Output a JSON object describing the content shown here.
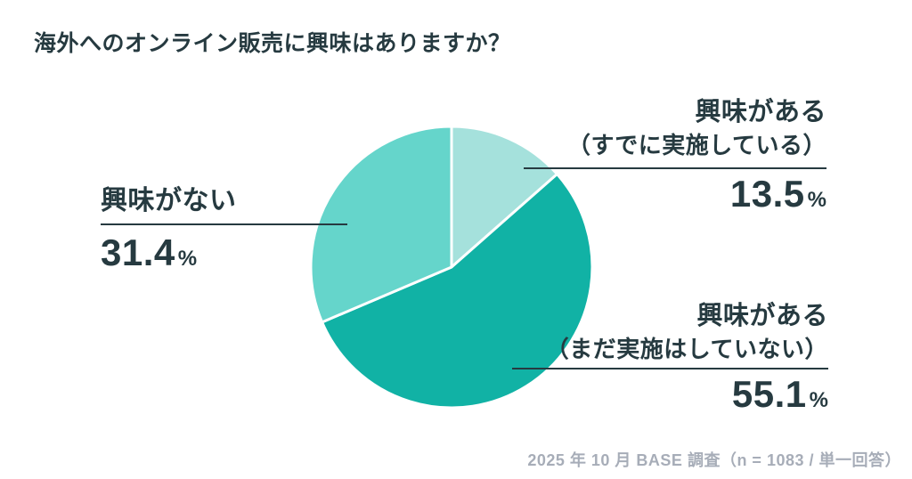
{
  "title": "海外へのオンライン販売に興味はありますか？",
  "footer": "2025 年 10 月 BASE 調査（n = 1083 / 単一回答）",
  "colors": {
    "text": "#263a40",
    "footer_text": "#a7adb8",
    "slice_interested_doing": "#a5e1dc",
    "slice_interested_not_yet": "#11b2a5",
    "slice_not_interested": "#65d5cb",
    "slice_border": "#ffffff"
  },
  "chart_data": {
    "type": "pie",
    "title": "海外へのオンライン販売に興味はありますか？",
    "start_angle_deg": 0,
    "direction": "clockwise",
    "slices": [
      {
        "label": "興味がある（すでに実施している）",
        "value": 13.5,
        "color": "#a5e1dc"
      },
      {
        "label": "興味がある（まだ実施はしていない）",
        "value": 55.1,
        "color": "#11b2a5"
      },
      {
        "label": "興味がない",
        "value": 31.4,
        "color": "#65d5cb"
      }
    ],
    "legend_position": "none",
    "source_note": "2025 年 10 月 BASE 調査（n = 1083 / 単一回答）"
  },
  "callouts": {
    "interested_doing": {
      "line1": "興味がある",
      "line2": "（すでに実施している）",
      "value": "13.5",
      "unit": "%"
    },
    "not_interested": {
      "line1": "興味がない",
      "value": "31.4",
      "unit": "%"
    },
    "interested_not_yet": {
      "line1": "興味がある",
      "line2": "（まだ実施はしていない）",
      "value": "55.1",
      "unit": "%"
    }
  }
}
